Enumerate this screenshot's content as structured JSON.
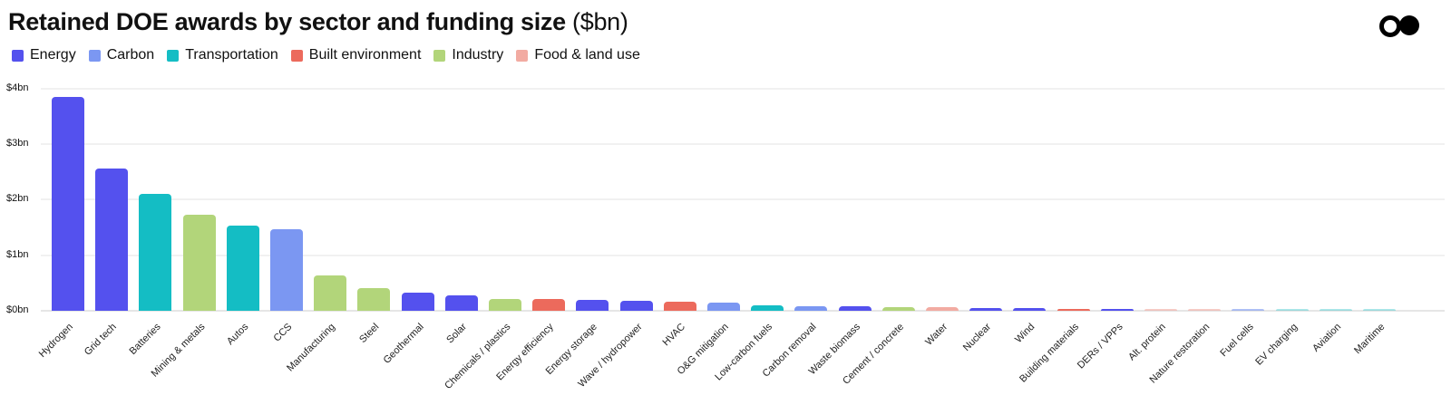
{
  "header": {
    "title": "Retained DOE awards by sector and funding size",
    "title_unit": "($bn)",
    "logo_icon": "two-circles-logo-icon"
  },
  "legend": [
    {
      "label": "Energy",
      "color": "#5451EE"
    },
    {
      "label": "Carbon",
      "color": "#7B97F2"
    },
    {
      "label": "Transportation",
      "color": "#14BDC4"
    },
    {
      "label": "Built environment",
      "color": "#EC6A5C"
    },
    {
      "label": "Industry",
      "color": "#B2D57A"
    },
    {
      "label": "Food & land use",
      "color": "#F2ABA2"
    }
  ],
  "chart_data": {
    "type": "bar",
    "title": "Retained DOE awards by sector and funding size ($bn)",
    "xlabel": "",
    "ylabel": "",
    "ylim": [
      0,
      4
    ],
    "yticks": [
      "$0bn",
      "$1bn",
      "$2bn",
      "$3bn",
      "$4bn"
    ],
    "grid": true,
    "legend_position": "top-left",
    "categories": [
      "Hydrogen",
      "Grid tech",
      "Batteries",
      "Mining & metals",
      "Autos",
      "CCS",
      "Manufacturing",
      "Steel",
      "Geothermal",
      "Solar",
      "Chemicals / plastics",
      "Energy efficiency",
      "Energy storage",
      "Wave / hydropower",
      "HVAC",
      "O&G mitigation",
      "Low-carbon fuels",
      "Carbon removal",
      "Waste biomass",
      "Cement / concrete",
      "Water",
      "Nuclear",
      "Wind",
      "Building materials",
      "DERs / VPPs",
      "Alt. protein",
      "Nature restoration",
      "Fuel cells",
      "EV charging",
      "Aviation",
      "Maritime"
    ],
    "values": [
      3.85,
      2.56,
      2.1,
      1.73,
      1.53,
      1.47,
      0.64,
      0.41,
      0.33,
      0.28,
      0.21,
      0.21,
      0.2,
      0.18,
      0.16,
      0.14,
      0.1,
      0.08,
      0.08,
      0.07,
      0.07,
      0.05,
      0.05,
      0.03,
      0.03,
      0.02,
      0.02,
      0.02,
      0.005,
      0.005,
      0.005
    ],
    "sectors": [
      "Energy",
      "Energy",
      "Transportation",
      "Industry",
      "Transportation",
      "Carbon",
      "Industry",
      "Industry",
      "Energy",
      "Energy",
      "Industry",
      "Built environment",
      "Energy",
      "Energy",
      "Built environment",
      "Carbon",
      "Transportation",
      "Carbon",
      "Energy",
      "Industry",
      "Food & land use",
      "Energy",
      "Energy",
      "Built environment",
      "Energy",
      "Food & land use",
      "Food & land use",
      "Carbon",
      "Transportation",
      "Transportation",
      "Transportation"
    ]
  }
}
